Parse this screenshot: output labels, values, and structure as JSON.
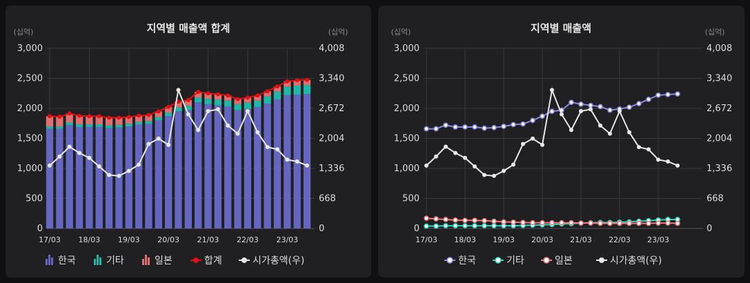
{
  "chart_data": [
    {
      "type": "bar",
      "stacked": true,
      "title": "지역별 매출액 합계",
      "y_unit_left": "(십억)",
      "y_unit_right": "(십억)",
      "yticks_left": [
        "0",
        "500",
        "1,000",
        "1,500",
        "2,000",
        "2,500",
        "3,000"
      ],
      "yticks_right": [
        "0",
        "668",
        "1,336",
        "2,004",
        "2,672",
        "3,340",
        "4,008"
      ],
      "ylim_left": [
        0,
        3000
      ],
      "ylim_right": [
        0,
        4008
      ],
      "x_ticks": [
        "17/03",
        "18/03",
        "19/03",
        "20/03",
        "21/03",
        "22/03",
        "23/03"
      ],
      "grid": true,
      "legend_position": "bottom",
      "series": [
        {
          "name": "한국",
          "type": "bar",
          "axis": "left",
          "color": "#6466c0",
          "values": [
            1660,
            1660,
            1720,
            1690,
            1690,
            1690,
            1670,
            1680,
            1700,
            1730,
            1740,
            1800,
            1870,
            1950,
            1970,
            2100,
            2070,
            2050,
            2030,
            1970,
            1990,
            2020,
            2080,
            2150,
            2220,
            2230,
            2240
          ]
        },
        {
          "name": "기타",
          "type": "bar",
          "axis": "left",
          "color": "#1fb8a8",
          "values": [
            40,
            40,
            45,
            45,
            45,
            45,
            45,
            45,
            45,
            45,
            50,
            55,
            60,
            65,
            75,
            80,
            90,
            95,
            100,
            100,
            105,
            110,
            120,
            130,
            140,
            150,
            150
          ]
        },
        {
          "name": "일본",
          "type": "bar",
          "axis": "left",
          "color": "#e07070",
          "values": [
            170,
            160,
            150,
            140,
            135,
            135,
            130,
            120,
            110,
            105,
            100,
            95,
            95,
            95,
            95,
            95,
            90,
            90,
            85,
            85,
            85,
            85,
            85,
            85,
            90,
            90,
            85
          ]
        },
        {
          "name": "합계",
          "type": "line",
          "axis": "left",
          "color": "#e01010",
          "values": [
            1870,
            1860,
            1915,
            1875,
            1870,
            1870,
            1845,
            1845,
            1855,
            1880,
            1890,
            1950,
            2025,
            2110,
            2140,
            2275,
            2250,
            2235,
            2215,
            2155,
            2180,
            2215,
            2285,
            2365,
            2450,
            2470,
            2475
          ]
        },
        {
          "name": "시가총액(우)",
          "type": "line",
          "axis": "right",
          "color": "#e8e8e8",
          "values": [
            1400,
            1600,
            1820,
            1680,
            1570,
            1380,
            1190,
            1170,
            1280,
            1420,
            1880,
            2000,
            1860,
            3080,
            2540,
            2190,
            2610,
            2650,
            2290,
            2110,
            2610,
            2140,
            1810,
            1760,
            1530,
            1490,
            1400
          ]
        }
      ],
      "legend": [
        "한국",
        "기타",
        "일본",
        "합계",
        "시가총액(우)"
      ]
    },
    {
      "type": "line",
      "title": "지역별 매출액",
      "y_unit_left": "(십억)",
      "y_unit_right": "(십억)",
      "yticks_left": [
        "0",
        "500",
        "1,000",
        "1,500",
        "2,000",
        "2,500",
        "3,000"
      ],
      "yticks_right": [
        "0",
        "668",
        "1,336",
        "2,004",
        "2,672",
        "3,340",
        "4,008"
      ],
      "ylim_left": [
        0,
        3000
      ],
      "ylim_right": [
        0,
        4008
      ],
      "x_ticks": [
        "17/03",
        "18/03",
        "19/03",
        "20/03",
        "21/03",
        "22/03",
        "23/03"
      ],
      "grid": true,
      "legend_position": "bottom",
      "series": [
        {
          "name": "한국",
          "axis": "left",
          "color": "#8a8ae6",
          "values": [
            1660,
            1660,
            1720,
            1690,
            1690,
            1690,
            1670,
            1680,
            1700,
            1730,
            1740,
            1800,
            1870,
            1950,
            1970,
            2100,
            2070,
            2050,
            2030,
            1970,
            1990,
            2020,
            2080,
            2150,
            2220,
            2230,
            2240
          ]
        },
        {
          "name": "기타",
          "axis": "left",
          "color": "#2ed6c2",
          "values": [
            40,
            40,
            45,
            45,
            45,
            45,
            45,
            45,
            45,
            45,
            50,
            55,
            60,
            65,
            75,
            80,
            90,
            95,
            100,
            100,
            105,
            110,
            120,
            130,
            140,
            150,
            150
          ]
        },
        {
          "name": "일본",
          "axis": "left",
          "color": "#f07a7a",
          "values": [
            170,
            160,
            150,
            140,
            135,
            135,
            130,
            120,
            110,
            105,
            100,
            95,
            95,
            95,
            95,
            95,
            90,
            90,
            85,
            85,
            85,
            85,
            85,
            85,
            90,
            90,
            85
          ]
        },
        {
          "name": "시가총액(우)",
          "axis": "right",
          "color": "#e8e8e8",
          "values": [
            1400,
            1600,
            1820,
            1680,
            1570,
            1380,
            1190,
            1170,
            1280,
            1420,
            1880,
            2000,
            1860,
            3080,
            2540,
            2190,
            2610,
            2650,
            2290,
            2110,
            2610,
            2140,
            1810,
            1760,
            1530,
            1490,
            1400
          ]
        }
      ],
      "legend": [
        "한국",
        "기타",
        "일본",
        "시가총액(우)"
      ]
    }
  ]
}
